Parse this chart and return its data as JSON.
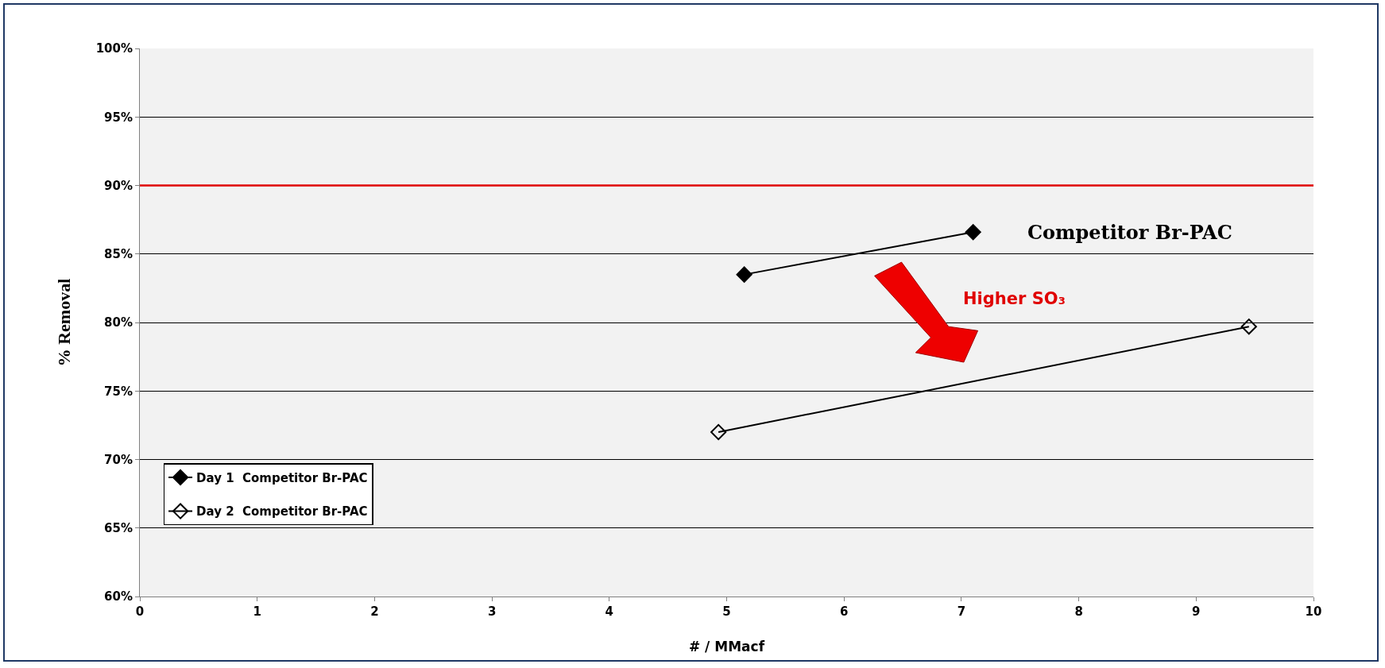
{
  "chart_data": {
    "type": "line",
    "xlabel": "# / MMacf",
    "ylabel": "% Removal",
    "series": [
      {
        "name": "Day 1  Competitor Br-PAC",
        "color": "#000000",
        "marker": "diamond",
        "x": [
          5.15,
          7.1
        ],
        "values": [
          83.5,
          86.6
        ]
      },
      {
        "name": "Day 2  Competitor Br-PAC",
        "color": "#000000",
        "marker": "diamond-open",
        "x": [
          4.93,
          9.45
        ],
        "values": [
          72.0,
          79.7
        ]
      }
    ],
    "xlim": [
      0,
      10
    ],
    "xticks": [
      0,
      1,
      2,
      3,
      4,
      5,
      6,
      7,
      8,
      9,
      10
    ],
    "ylim": [
      60,
      100
    ],
    "yticks": [
      {
        "value": 60,
        "label": "60%"
      },
      {
        "value": 65,
        "label": "65%"
      },
      {
        "value": 70,
        "label": "70%"
      },
      {
        "value": 75,
        "label": "75%"
      },
      {
        "value": 80,
        "label": "80%"
      },
      {
        "value": 85,
        "label": "85%"
      },
      {
        "value": 90,
        "label": "90%"
      },
      {
        "value": 95,
        "label": "95%"
      },
      {
        "value": 100,
        "label": "100%"
      }
    ],
    "grid": "y",
    "legend": "bottom left",
    "line_style": "solid",
    "ref_lines": [
      {
        "axis": "y",
        "value": 90,
        "label": null,
        "color": "#e00000"
      }
    ],
    "annotations": [
      "Competitor Br-PAC",
      "Higher SO₃"
    ]
  }
}
